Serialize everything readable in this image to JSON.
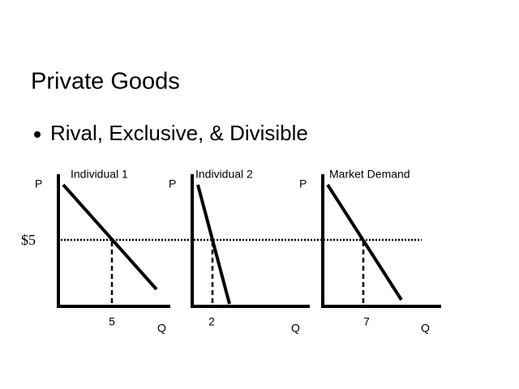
{
  "title": "Private Goods",
  "bullets": [
    "Rival, Exclusive, & Divisible"
  ],
  "price_label": "$5",
  "panels": [
    {
      "title": "Individual 1",
      "y_axis_label": "P",
      "x_axis_label": "Q",
      "quantity": 5
    },
    {
      "title": "Individual 2",
      "y_axis_label": "P",
      "x_axis_label": "Q",
      "quantity": 2
    },
    {
      "title": "Market Demand",
      "y_axis_label": "P",
      "x_axis_label": "Q",
      "quantity": 7
    }
  ]
}
